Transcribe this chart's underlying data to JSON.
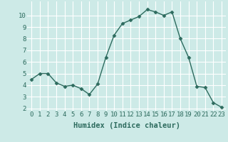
{
  "x": [
    0,
    1,
    2,
    3,
    4,
    5,
    6,
    7,
    8,
    9,
    10,
    11,
    12,
    13,
    14,
    15,
    16,
    17,
    18,
    19,
    20,
    21,
    22,
    23
  ],
  "y": [
    4.5,
    5.0,
    5.0,
    4.2,
    3.9,
    4.0,
    3.7,
    3.2,
    4.1,
    6.4,
    8.3,
    9.3,
    9.6,
    9.9,
    10.5,
    10.3,
    10.0,
    10.3,
    8.0,
    6.4,
    3.9,
    3.8,
    2.5,
    2.1
  ],
  "line_color": "#2d6b5e",
  "marker": "D",
  "marker_size": 2.5,
  "bg_color": "#cdeae7",
  "grid_color": "#ffffff",
  "xlabel": "Humidex (Indice chaleur)",
  "ylim_min": 1.8,
  "ylim_max": 11.2,
  "xlim_min": -0.5,
  "xlim_max": 23.5,
  "yticks": [
    2,
    3,
    4,
    5,
    6,
    7,
    8,
    9,
    10
  ],
  "xticks": [
    0,
    1,
    2,
    3,
    4,
    5,
    6,
    7,
    8,
    9,
    10,
    11,
    12,
    13,
    14,
    15,
    16,
    17,
    18,
    19,
    20,
    21,
    22,
    23
  ],
  "xlabel_fontsize": 7.5,
  "tick_fontsize": 6.5,
  "tick_color": "#2d6b5e",
  "label_color": "#2d6b5e",
  "line_width": 1.0
}
